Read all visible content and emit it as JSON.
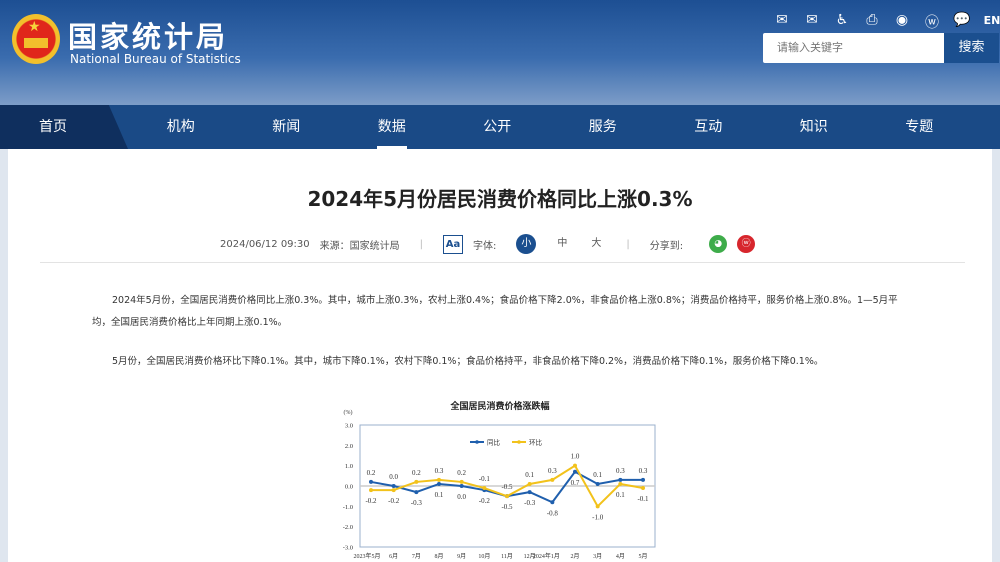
{
  "header": {
    "logo_cn": "国家统计局",
    "logo_en": "National Bureau of Statistics",
    "tools": [
      "mail-icon",
      "mail-settings-icon",
      "accessibility-icon",
      "print-icon",
      "miniprogram-icon",
      "weibo-icon",
      "wechat-icon"
    ],
    "lang": "EN",
    "search_placeholder": "请输入关键字",
    "search_label": "搜索"
  },
  "nav": [
    "首页",
    "机构",
    "新闻",
    "数据",
    "公开",
    "服务",
    "互动",
    "知识",
    "专题"
  ],
  "article": {
    "title": "2024年5月份居民消费价格同比上涨0.3%",
    "datetime": "2024/06/12 09:30",
    "source": "来源：国家统计局",
    "font_label": "字体:",
    "sizes": [
      "小",
      "中",
      "大"
    ],
    "share_label": "分享到:",
    "p1a": "2024年5月份，全国居民消费价格同比上涨0.3%。其中，城市上涨0.3%，农村上涨0.4%；食品价格下降2.0%，非食品价格上涨0.8%；消费品价格持平，服务价格上涨0.8%。1—5月平",
    "p1b": "均，全国居民消费价格比上年同期上涨0.1%。",
    "p2": "5月份，全国居民消费价格环比下降0.1%。其中，城市下降0.1%，农村下降0.1%；食品价格持平，非食品价格下降0.2%，消费品价格下降0.1%，服务价格下降0.1%。"
  },
  "chart_data": {
    "type": "line",
    "title": "全国居民消费价格涨跌幅",
    "ylabel": "(%)",
    "ylim": [
      -3.0,
      3.0
    ],
    "yticks": [
      "3.0",
      "2.0",
      "1.0",
      "0.0",
      "-1.0",
      "-2.0",
      "-3.0"
    ],
    "legend": "top-center",
    "categories": [
      "2023年5月",
      "6月",
      "7月",
      "8月",
      "9月",
      "10月",
      "11月",
      "12月",
      "2024年1月",
      "2月",
      "3月",
      "4月",
      "5月"
    ],
    "series": [
      {
        "name": "同比",
        "color": "#1f5fad",
        "values": [
          0.2,
          0.0,
          -0.3,
          0.1,
          0.0,
          -0.2,
          -0.5,
          -0.3,
          -0.8,
          0.7,
          0.1,
          0.3,
          0.3
        ]
      },
      {
        "name": "环比",
        "color": "#f2c21b",
        "values": [
          -0.2,
          -0.2,
          0.2,
          0.3,
          0.2,
          -0.1,
          -0.5,
          0.1,
          0.3,
          1.0,
          -1.0,
          0.1,
          -0.1
        ]
      }
    ]
  }
}
